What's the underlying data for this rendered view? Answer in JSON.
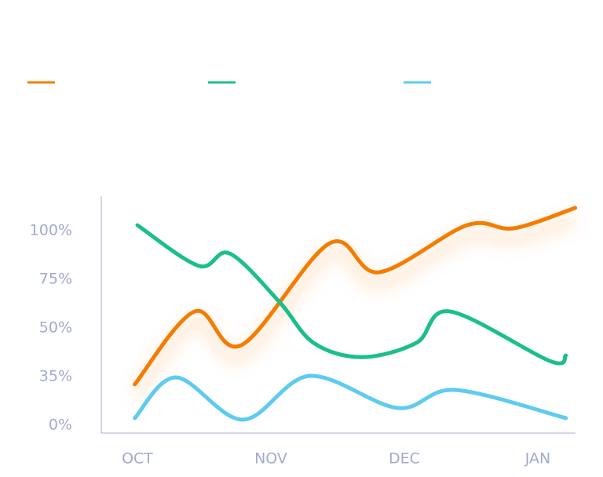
{
  "chart_data": {
    "type": "line",
    "categories": [
      "OCT",
      "NOV",
      "DEC",
      "JAN"
    ],
    "ylim": [
      0,
      111.7
    ],
    "yticks": [
      {
        "value": 0,
        "label": "0%"
      },
      {
        "value": 35,
        "label": "35%"
      },
      {
        "value": 50,
        "label": "50%"
      },
      {
        "value": 75,
        "label": "75%"
      },
      {
        "value": 100,
        "label": "100%"
      }
    ],
    "series": [
      {
        "color": "#f57c00",
        "x": [
          -0.02,
          0.43,
          0.78,
          1.44,
          1.81,
          2.47,
          2.82,
          3.28
        ],
        "values": [
          29.4,
          58.5,
          44.7,
          93.5,
          78.6,
          102.8,
          101.2,
          111.7
        ]
      },
      {
        "color": "#1bbf8a",
        "x": [
          0,
          0.46,
          0.69,
          1.06,
          1.32,
          1.68,
          2.09,
          2.34,
          3.09,
          3.21
        ],
        "values": [
          102.8,
          81.9,
          88.3,
          63.7,
          45.4,
          41.0,
          45.4,
          58.5,
          39.8,
          41.5
        ]
      },
      {
        "color": "#5ecbf0",
        "x": [
          -0.02,
          0.29,
          0.79,
          1.29,
          1.95,
          2.38,
          3.21
        ],
        "values": [
          5.1,
          34.4,
          4.0,
          35.2,
          12.4,
          25.4,
          5.1
        ]
      }
    ]
  }
}
